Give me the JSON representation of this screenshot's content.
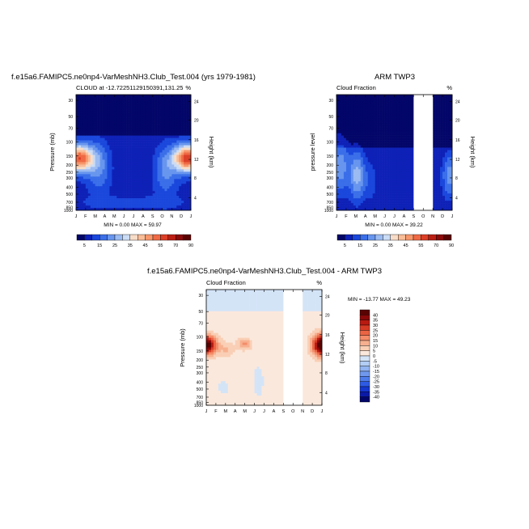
{
  "chart_data": [
    {
      "type": "heatmap",
      "title": "f.e15a6.FAMIPC5.ne0np4-VarMeshNH3.Club_Test.004 (yrs 1979-1981)",
      "subtitle_left": "CLOUD at -12.72251129150391,131.25",
      "subtitle_right": "%",
      "ylabel": "Pressure (mb)",
      "ylabel_right": "Height (km)",
      "x_ticks": [
        "J",
        "F",
        "M",
        "A",
        "M",
        "J",
        "J",
        "A",
        "S",
        "O",
        "N",
        "D",
        "J"
      ],
      "y_ticks": [
        "30",
        "50",
        "70",
        "100",
        "150",
        "200",
        "250",
        "300",
        "400",
        "500",
        "700",
        "850",
        "1000"
      ],
      "y_right_ticks": [
        "24",
        "20",
        "16",
        "12",
        "8",
        "4"
      ],
      "stats": "MIN =  0.00 MAX = 59.97",
      "min": 0.0,
      "max": 59.97,
      "colorbar_labels": [
        "5",
        "15",
        "25",
        "35",
        "45",
        "55",
        "70",
        "90"
      ],
      "missing_months": []
    },
    {
      "type": "heatmap",
      "title": "ARM TWP3",
      "subtitle_left": "Cloud Fraction",
      "subtitle_right": "%",
      "ylabel": "pressure level",
      "ylabel_right": "Height (km)",
      "x_ticks": [
        "J",
        "F",
        "M",
        "A",
        "M",
        "J",
        "J",
        "A",
        "S",
        "O",
        "N",
        "D",
        "J"
      ],
      "y_ticks": [
        "30",
        "50",
        "70",
        "100",
        "150",
        "200",
        "250",
        "300",
        "400",
        "500",
        "700",
        "850",
        "1000"
      ],
      "y_right_ticks": [
        "24",
        "20",
        "16",
        "12",
        "8",
        "4"
      ],
      "stats": "MIN =  0.00 MAX = 39.22",
      "min": 0.0,
      "max": 39.22,
      "colorbar_labels": [
        "5",
        "15",
        "25",
        "35",
        "45",
        "55",
        "70",
        "90"
      ],
      "missing_months": [
        "S-O",
        "O-N"
      ]
    },
    {
      "type": "heatmap",
      "title": "f.e15a6.FAMIPC5.ne0np4-VarMeshNH3.Club_Test.004 - ARM TWP3",
      "subtitle_left": "Cloud Fraction",
      "subtitle_right": "%",
      "ylabel": "Pressure (mb)",
      "ylabel_right": "Height (km)",
      "x_ticks": [
        "J",
        "F",
        "M",
        "A",
        "M",
        "J",
        "J",
        "A",
        "S",
        "O",
        "N",
        "D",
        "J"
      ],
      "y_ticks": [
        "30",
        "50",
        "70",
        "100",
        "150",
        "200",
        "250",
        "300",
        "400",
        "500",
        "700",
        "850",
        "1000"
      ],
      "y_right_ticks": [
        "24",
        "20",
        "16",
        "12",
        "8",
        "4"
      ],
      "stats": "MIN = -13.77 MAX =  49.23",
      "min": -13.77,
      "max": 49.23,
      "colorbar_labels": [
        "40",
        "35",
        "30",
        "25",
        "20",
        "15",
        "10",
        "5",
        "0",
        "-5",
        "-10",
        "-15",
        "-20",
        "-25",
        "-30",
        "-35",
        "-40"
      ],
      "missing_months": [
        "S-O",
        "O-N"
      ]
    }
  ],
  "colors": {
    "seq_palette": [
      "#030668",
      "#0e21b7",
      "#1a47dc",
      "#3b6fe9",
      "#6896ee",
      "#9bbbf2",
      "#cbdcf6",
      "#f7ddc8",
      "#f9bd98",
      "#f7976b",
      "#ef6a45",
      "#dc3f28",
      "#bb1f14",
      "#8c0b0b",
      "#5a0303"
    ],
    "diff_palette": [
      "#030668",
      "#0b1aa6",
      "#1537cf",
      "#2e5be5",
      "#4f7ceb",
      "#7099ee",
      "#92b4f1",
      "#b3cdf4",
      "#d4e4f7",
      "#fbe8dc",
      "#f9cfb5",
      "#f7b08f",
      "#f48c69",
      "#ea6444",
      "#d63c25",
      "#b81a12",
      "#8a0808",
      "#5a0303"
    ]
  }
}
